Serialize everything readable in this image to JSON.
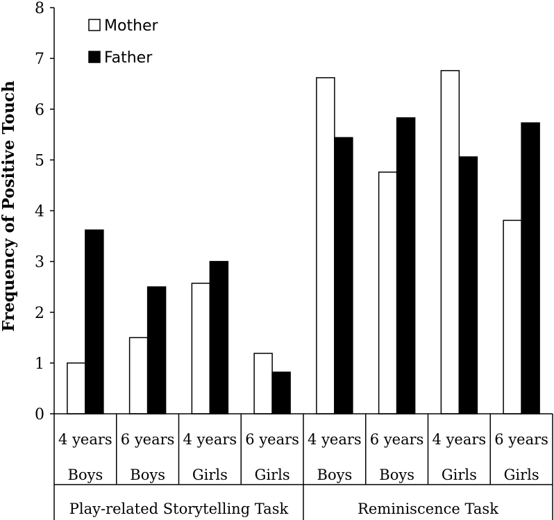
{
  "chart_data": {
    "type": "bar",
    "title": "",
    "ylabel": "Frequency of Positive Touch",
    "xlabel": "",
    "ylim": [
      0,
      8
    ],
    "yticks": [
      "0",
      "1",
      "2",
      "3",
      "4",
      "5",
      "6",
      "7",
      "8"
    ],
    "categories": [
      {
        "age": "4 years",
        "gender": "Boys"
      },
      {
        "age": "6 years",
        "gender": "Boys"
      },
      {
        "age": "4 years",
        "gender": "Girls"
      },
      {
        "age": "6 years",
        "gender": "Girls"
      },
      {
        "age": "4 years",
        "gender": "Boys"
      },
      {
        "age": "6 years",
        "gender": "Boys"
      },
      {
        "age": "4 years",
        "gender": "Girls"
      },
      {
        "age": "6 years",
        "gender": "Girls"
      }
    ],
    "groups": [
      {
        "label": "Play-related Storytelling Task"
      },
      {
        "label": "Reminiscence Task"
      }
    ],
    "series": [
      {
        "name": "Mother",
        "color": "#ffffff",
        "values": [
          1.0,
          1.5,
          2.57,
          1.19,
          6.62,
          4.76,
          6.76,
          3.81
        ]
      },
      {
        "name": "Father",
        "color": "#000000",
        "values": [
          3.62,
          2.5,
          3.0,
          0.82,
          5.44,
          5.83,
          5.06,
          5.73
        ]
      }
    ],
    "legend": "top-left"
  }
}
